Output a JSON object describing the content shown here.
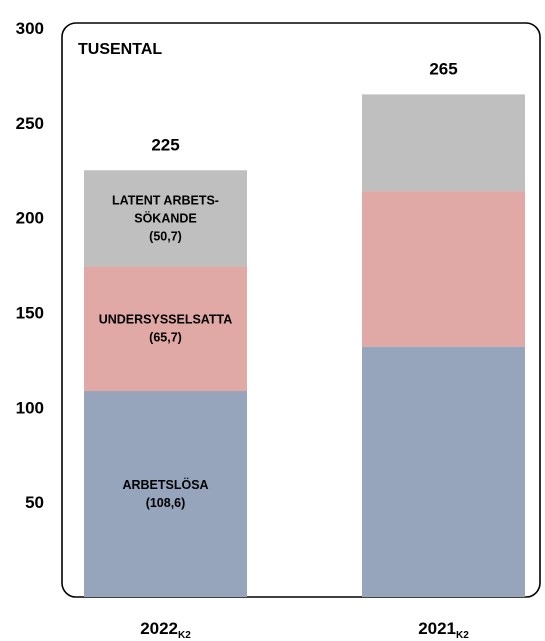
{
  "chart_data": {
    "type": "bar",
    "stacked": true,
    "unit_label": "TUSENTAL",
    "ylim": [
      0,
      300
    ],
    "y_ticks": [
      50,
      100,
      150,
      200,
      250,
      300
    ],
    "categories": [
      {
        "label": "2022",
        "sub": "K2"
      },
      {
        "label": "2021",
        "sub": "K2"
      }
    ],
    "series": [
      {
        "name": "ARBETSLÖSA",
        "color": "#96a5bc",
        "values": [
          108.6,
          132
        ]
      },
      {
        "name": "UNDERSYSSELSATTA",
        "color": "#e0a9a5",
        "values": [
          65.7,
          82
        ]
      },
      {
        "name": "LATENT ARBETS-SÖKANDE",
        "color": "#bfbfbf",
        "values": [
          50.7,
          51
        ]
      }
    ],
    "segment_labels": [
      [
        "ARBETSLÖSA",
        "(108,6)"
      ],
      [
        "UNDERSYSSELSATTA",
        "(65,7)"
      ],
      [
        "LATENT ARBETS-",
        "SÖKANDE",
        "(50,7)"
      ]
    ],
    "totals": [
      "225",
      "265"
    ]
  }
}
